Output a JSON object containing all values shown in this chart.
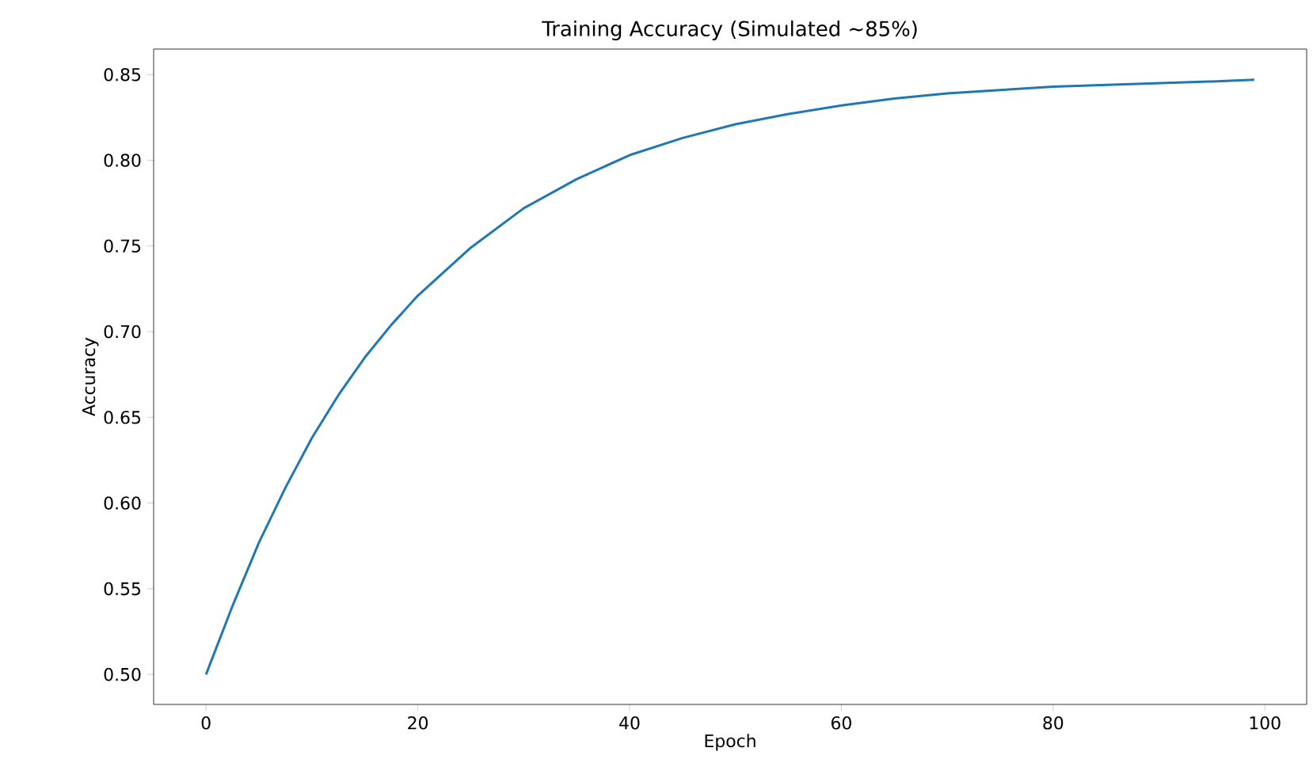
{
  "chart_data": {
    "type": "line",
    "title": "Training Accuracy (Simulated ~85%)",
    "xlabel": "Epoch",
    "ylabel": "Accuracy",
    "x": [
      0,
      2.5,
      5,
      7.5,
      10,
      12.5,
      15,
      17.5,
      20,
      25,
      30,
      35,
      40,
      45,
      50,
      55,
      60,
      65,
      70,
      75,
      80,
      85,
      90,
      95,
      99
    ],
    "series": [
      {
        "color": "#1f77b4",
        "values": [
          0.5,
          0.54,
          0.577,
          0.609,
          0.638,
          0.663,
          0.685,
          0.704,
          0.721,
          0.749,
          0.772,
          0.789,
          0.803,
          0.813,
          0.821,
          0.827,
          0.832,
          0.836,
          0.839,
          0.841,
          0.843,
          0.844,
          0.845,
          0.846,
          0.847
        ]
      }
    ],
    "xlim": [
      -4.95,
      103.95
    ],
    "ylim": [
      0.4825,
      0.8649
    ],
    "xticks": [
      0,
      20,
      40,
      60,
      80,
      100
    ],
    "yticks": [
      {
        "value": 0.5,
        "label": "0.50"
      },
      {
        "value": 0.55,
        "label": "0.55"
      },
      {
        "value": 0.6,
        "label": "0.60"
      },
      {
        "value": 0.65,
        "label": "0.65"
      },
      {
        "value": 0.7,
        "label": "0.70"
      },
      {
        "value": 0.75,
        "label": "0.75"
      },
      {
        "value": 0.8,
        "label": "0.80"
      },
      {
        "value": 0.85,
        "label": "0.85"
      }
    ],
    "grid": false,
    "marker": "none",
    "line_style": "solid"
  }
}
